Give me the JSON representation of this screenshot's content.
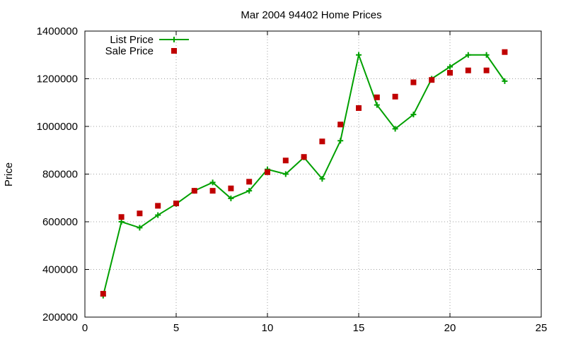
{
  "chart_data": {
    "type": "line",
    "title": "Mar 2004 94402 Home Prices",
    "xlabel": "",
    "ylabel": "Price",
    "xlim": [
      0,
      25
    ],
    "ylim": [
      200000,
      1400000
    ],
    "xticks": [
      0,
      5,
      10,
      15,
      20,
      25
    ],
    "yticks": [
      200000,
      400000,
      600000,
      800000,
      1000000,
      1200000,
      1400000
    ],
    "grid": true,
    "legend_position": "top-left",
    "series": [
      {
        "name": "List Price",
        "style": "line-plus",
        "color": "#00a000",
        "x": [
          1,
          2,
          3,
          4,
          5,
          6,
          7,
          8,
          9,
          10,
          11,
          12,
          13,
          14,
          15,
          16,
          17,
          18,
          19,
          20,
          21,
          22,
          23
        ],
        "values": [
          290000,
          600000,
          575000,
          628000,
          675000,
          730000,
          765000,
          698000,
          730000,
          820000,
          800000,
          870000,
          780000,
          940000,
          1300000,
          1090000,
          990000,
          1050000,
          1200000,
          1250000,
          1300000,
          1300000,
          1190000
        ]
      },
      {
        "name": "Sale Price",
        "style": "square-points",
        "color": "#c00000",
        "x": [
          1,
          2,
          3,
          4,
          5,
          6,
          7,
          8,
          9,
          10,
          11,
          12,
          13,
          14,
          15,
          16,
          17,
          18,
          19,
          20,
          21,
          22,
          23
        ],
        "values": [
          298000,
          620000,
          635000,
          667000,
          677000,
          730000,
          730000,
          740000,
          768000,
          808000,
          857000,
          872000,
          937000,
          1008000,
          1077000,
          1122000,
          1125000,
          1185000,
          1195000,
          1225000,
          1235000,
          1235000,
          1312000
        ]
      }
    ]
  }
}
